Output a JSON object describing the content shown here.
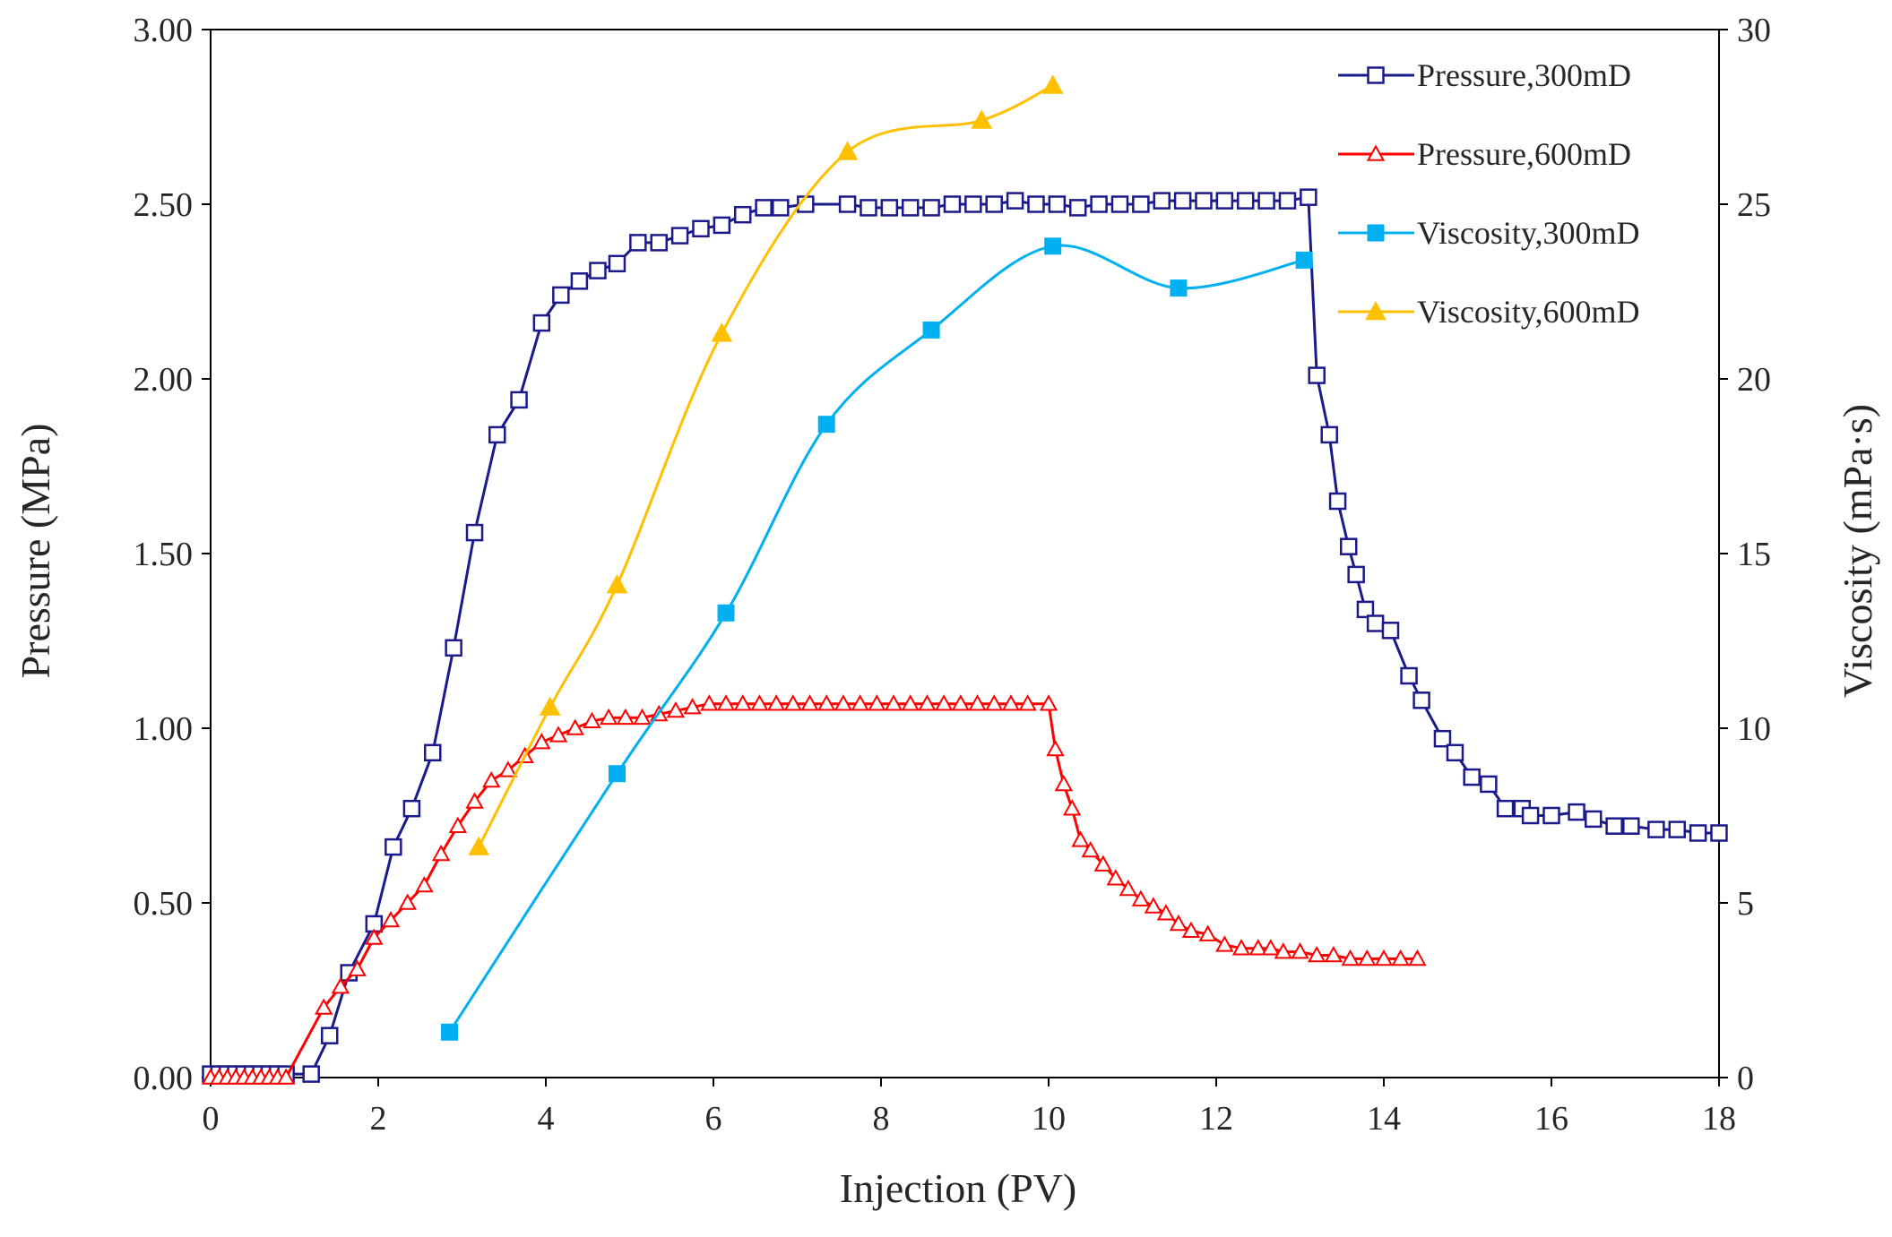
{
  "chart_data": {
    "type": "line",
    "title": "",
    "xlabel": "Injection (PV)",
    "ylabel_left": "Pressure (MPa)",
    "ylabel_right": "Viscosity (mPa·s)",
    "xlim": [
      0,
      18
    ],
    "ylim_left": [
      0,
      3
    ],
    "ylim_right": [
      0,
      30
    ],
    "x_ticks": [
      "0",
      "2",
      "4",
      "6",
      "8",
      "10",
      "12",
      "14",
      "16",
      "18"
    ],
    "y_left_ticks": [
      "0.00",
      "0.50",
      "1.00",
      "1.50",
      "2.00",
      "2.50",
      "3.00"
    ],
    "y_right_ticks": [
      "0",
      "5",
      "10",
      "15",
      "20",
      "25",
      "30"
    ],
    "grid": false,
    "legend_position": "top-right",
    "series": [
      {
        "name": "Pressure,300mD",
        "axis": "left",
        "color": "#1a1a8c",
        "marker": "square-open",
        "x": [
          0.0,
          0.1,
          0.2,
          0.3,
          0.4,
          0.5,
          0.6,
          0.7,
          0.8,
          0.9,
          1.2,
          1.42,
          1.65,
          1.95,
          2.18,
          2.4,
          2.65,
          2.9,
          3.15,
          3.42,
          3.68,
          3.95,
          4.18,
          4.4,
          4.62,
          4.85,
          5.1,
          5.35,
          5.6,
          5.85,
          6.1,
          6.35,
          6.6,
          6.8,
          7.1,
          7.6,
          7.85,
          8.1,
          8.35,
          8.6,
          8.85,
          9.1,
          9.35,
          9.6,
          9.85,
          10.1,
          10.35,
          10.6,
          10.85,
          11.1,
          11.35,
          11.6,
          11.85,
          12.1,
          12.35,
          12.6,
          12.85,
          13.1,
          13.2,
          13.35,
          13.45,
          13.58,
          13.67,
          13.78,
          13.9,
          14.08,
          14.3,
          14.45,
          14.7,
          14.85,
          15.05,
          15.25,
          15.45,
          15.65,
          15.75,
          16.0,
          16.3,
          16.5,
          16.75,
          16.95,
          17.25,
          17.5,
          17.75,
          18.0
        ],
        "y": [
          0.01,
          0.01,
          0.01,
          0.01,
          0.01,
          0.01,
          0.01,
          0.01,
          0.01,
          0.01,
          0.01,
          0.12,
          0.3,
          0.44,
          0.66,
          0.77,
          0.93,
          1.23,
          1.56,
          1.84,
          1.94,
          2.16,
          2.24,
          2.28,
          2.31,
          2.33,
          2.39,
          2.39,
          2.41,
          2.43,
          2.44,
          2.47,
          2.49,
          2.49,
          2.5,
          2.5,
          2.49,
          2.49,
          2.49,
          2.49,
          2.5,
          2.5,
          2.5,
          2.51,
          2.5,
          2.5,
          2.49,
          2.5,
          2.5,
          2.5,
          2.51,
          2.51,
          2.51,
          2.51,
          2.51,
          2.51,
          2.51,
          2.52,
          2.01,
          1.84,
          1.65,
          1.52,
          1.44,
          1.34,
          1.3,
          1.28,
          1.15,
          1.08,
          0.97,
          0.93,
          0.86,
          0.84,
          0.77,
          0.77,
          0.75,
          0.75,
          0.76,
          0.74,
          0.72,
          0.72,
          0.71,
          0.71,
          0.7,
          0.7
        ]
      },
      {
        "name": "Pressure,600mD",
        "axis": "left",
        "color": "#ff0000",
        "marker": "triangle-open",
        "x": [
          0.0,
          0.1,
          0.2,
          0.3,
          0.4,
          0.5,
          0.6,
          0.7,
          0.8,
          0.9,
          1.35,
          1.55,
          1.75,
          1.95,
          2.15,
          2.35,
          2.55,
          2.75,
          2.95,
          3.15,
          3.35,
          3.55,
          3.75,
          3.95,
          4.15,
          4.35,
          4.55,
          4.75,
          4.95,
          5.15,
          5.35,
          5.55,
          5.75,
          5.95,
          6.15,
          6.35,
          6.55,
          6.75,
          6.95,
          7.15,
          7.35,
          7.55,
          7.75,
          7.95,
          8.15,
          8.35,
          8.55,
          8.75,
          8.95,
          9.15,
          9.35,
          9.55,
          9.75,
          10.0,
          10.08,
          10.18,
          10.28,
          10.38,
          10.5,
          10.65,
          10.8,
          10.95,
          11.1,
          11.25,
          11.4,
          11.55,
          11.7,
          11.9,
          12.1,
          12.3,
          12.5,
          12.65,
          12.8,
          13.0,
          13.2,
          13.4,
          13.6,
          13.8,
          14.0,
          14.2,
          14.4
        ],
        "y": [
          0.0,
          0.0,
          0.0,
          0.0,
          0.0,
          0.0,
          0.0,
          0.0,
          0.0,
          0.0,
          0.2,
          0.26,
          0.31,
          0.4,
          0.45,
          0.5,
          0.55,
          0.64,
          0.72,
          0.79,
          0.85,
          0.88,
          0.92,
          0.96,
          0.98,
          1.0,
          1.02,
          1.03,
          1.03,
          1.03,
          1.04,
          1.05,
          1.06,
          1.07,
          1.07,
          1.07,
          1.07,
          1.07,
          1.07,
          1.07,
          1.07,
          1.07,
          1.07,
          1.07,
          1.07,
          1.07,
          1.07,
          1.07,
          1.07,
          1.07,
          1.07,
          1.07,
          1.07,
          1.07,
          0.94,
          0.84,
          0.77,
          0.68,
          0.65,
          0.61,
          0.57,
          0.54,
          0.51,
          0.49,
          0.47,
          0.44,
          0.42,
          0.41,
          0.38,
          0.37,
          0.37,
          0.37,
          0.36,
          0.36,
          0.35,
          0.35,
          0.34,
          0.34,
          0.34,
          0.34,
          0.34
        ]
      },
      {
        "name": "Viscosity,300mD",
        "axis": "right",
        "color": "#00b0f0",
        "marker": "square-filled",
        "x": [
          2.85,
          4.85,
          6.15,
          7.35,
          8.6,
          10.05,
          11.55,
          13.05
        ],
        "y": [
          1.3,
          8.7,
          13.3,
          18.7,
          21.4,
          23.8,
          22.6,
          23.4
        ]
      },
      {
        "name": "Viscosity,600mD",
        "axis": "right",
        "color": "#ffc000",
        "marker": "triangle-filled",
        "x": [
          3.2,
          4.05,
          4.85,
          6.1,
          7.6,
          9.2,
          10.05
        ],
        "y": [
          6.6,
          10.6,
          14.1,
          21.3,
          26.5,
          27.4,
          28.4
        ]
      }
    ]
  }
}
